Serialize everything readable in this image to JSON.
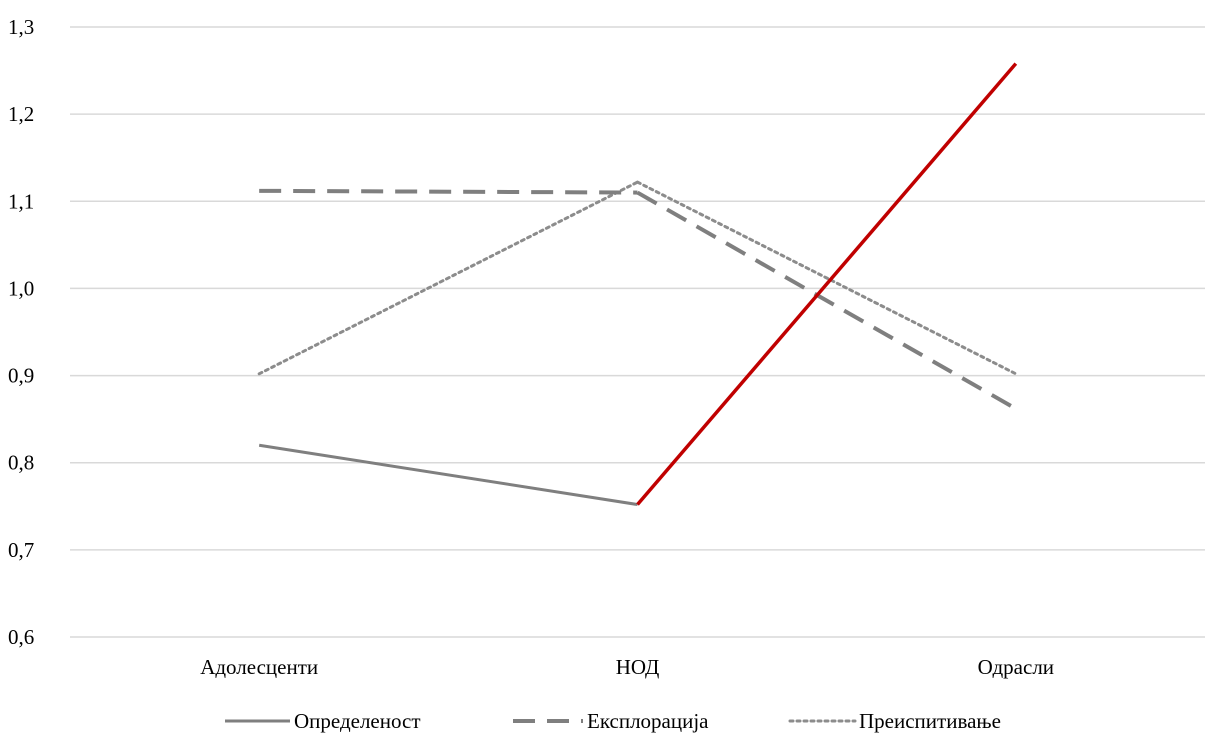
{
  "chart_data": {
    "type": "line",
    "title": "",
    "xlabel": "",
    "ylabel": "",
    "categories": [
      "Адолесценти",
      "НОД",
      "Одрасли"
    ],
    "ylim": [
      0.6,
      1.3
    ],
    "yticks": [
      "0,6",
      "0,7",
      "0,8",
      "0,9",
      "1,0",
      "1,1",
      "1,2",
      "1,3"
    ],
    "grid": "horizontal",
    "legend": "bottom",
    "series": [
      {
        "name": "Определеност",
        "values": [
          0.82,
          0.752,
          1.258
        ],
        "color": "#7f7f7f",
        "style": "solid",
        "highlight_segment": {
          "from": 1,
          "to": 2,
          "color": "#c00000"
        }
      },
      {
        "name": "Експлорација",
        "values": [
          1.112,
          1.11,
          0.862
        ],
        "color": "#7f7f7f",
        "style": "dashed"
      },
      {
        "name": "Преиспитивање",
        "values": [
          0.902,
          1.122,
          0.902
        ],
        "color": "#8c8c8c",
        "style": "dotted"
      }
    ]
  }
}
